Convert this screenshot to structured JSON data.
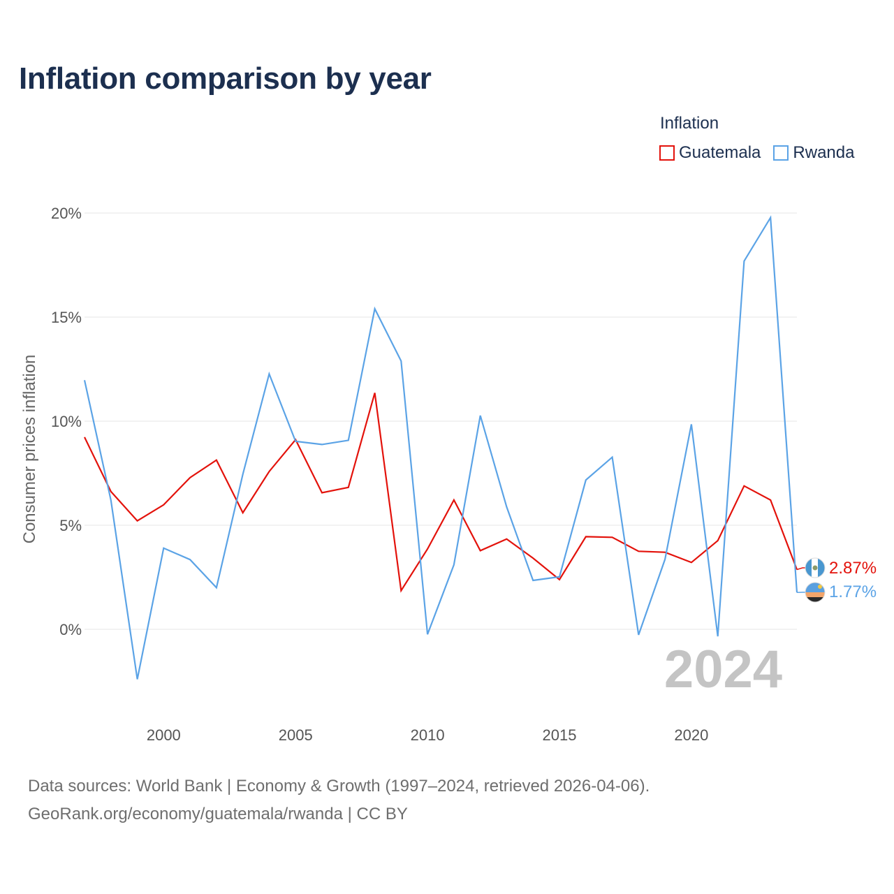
{
  "title": "Inflation comparison by year",
  "legend": {
    "title": "Inflation",
    "items": [
      {
        "label": "Guatemala",
        "color": "#e3120b"
      },
      {
        "label": "Rwanda",
        "color": "#5ba3e6"
      }
    ]
  },
  "year_watermark": "2024",
  "footer": {
    "line1": "Data sources: World Bank | Economy & Growth (1997–2024, retrieved 2026-04-06).",
    "line2": "GeoRank.org/economy/guatemala/rwanda | CC BY"
  },
  "chart_data": {
    "type": "line",
    "title": "Inflation comparison by year",
    "xlabel": "",
    "ylabel": "Consumer prices inflation",
    "x": [
      1997,
      1998,
      1999,
      2000,
      2001,
      2002,
      2003,
      2004,
      2005,
      2006,
      2007,
      2008,
      2009,
      2010,
      2011,
      2012,
      2013,
      2014,
      2015,
      2016,
      2017,
      2018,
      2019,
      2020,
      2021,
      2022,
      2023,
      2024
    ],
    "xlim": [
      1997,
      2024
    ],
    "ylim": [
      -3.8,
      20
    ],
    "xticks": [
      2000,
      2005,
      2010,
      2015,
      2020
    ],
    "yticks": [
      0,
      5,
      10,
      15,
      20
    ],
    "ytick_labels": [
      "0%",
      "5%",
      "10%",
      "15%",
      "20%"
    ],
    "grid": true,
    "legend_position": "top-right",
    "series": [
      {
        "name": "Guatemala",
        "color": "#e3120b",
        "values": [
          9.23,
          6.62,
          5.21,
          5.98,
          7.29,
          8.13,
          5.6,
          7.58,
          9.11,
          6.56,
          6.82,
          11.36,
          1.86,
          3.86,
          6.21,
          3.78,
          4.34,
          3.42,
          2.39,
          4.45,
          4.42,
          3.75,
          3.7,
          3.21,
          4.26,
          6.89,
          6.21,
          2.87
        ],
        "end_label": "2.87%"
      },
      {
        "name": "Rwanda",
        "color": "#5ba3e6",
        "values": [
          11.97,
          6.2,
          -2.4,
          3.9,
          3.35,
          2.0,
          7.45,
          12.27,
          9.03,
          8.88,
          9.08,
          15.4,
          12.89,
          -0.24,
          3.1,
          10.27,
          5.88,
          2.35,
          2.52,
          7.17,
          8.27,
          -0.27,
          3.36,
          9.85,
          -0.34,
          17.69,
          19.78,
          1.77
        ],
        "end_label": "1.77%"
      }
    ]
  }
}
